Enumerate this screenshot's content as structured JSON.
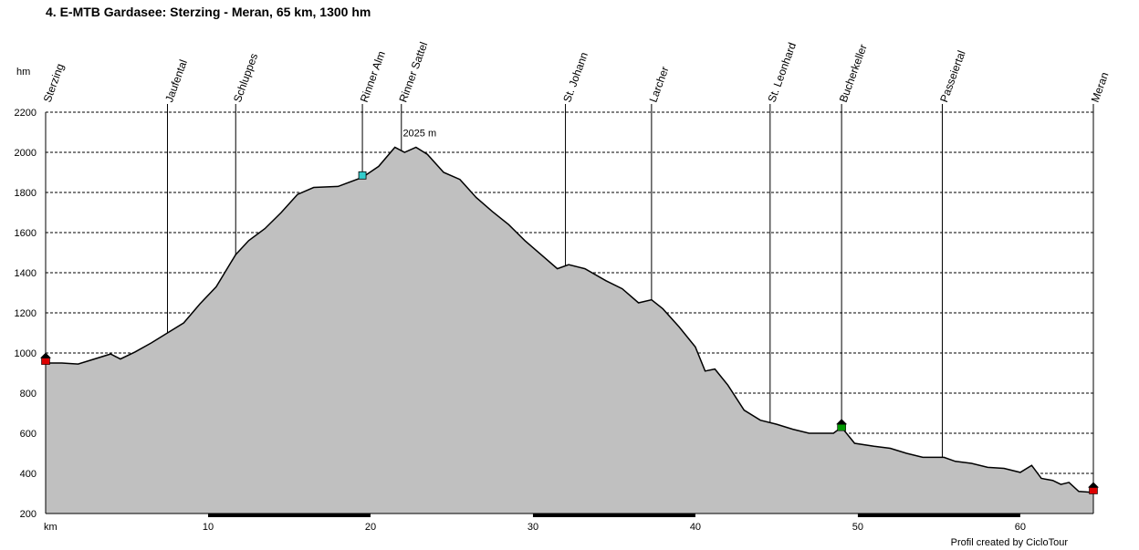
{
  "chart_data": {
    "type": "area",
    "title": "4. E-MTB Gardasee: Sterzing - Meran, 65 km, 1300 hm",
    "ylabel": "hm",
    "xlabel": "km",
    "ylim": [
      200,
      2200
    ],
    "xlim": [
      0,
      64.5
    ],
    "yticks": [
      200,
      400,
      600,
      800,
      1000,
      1200,
      1400,
      1600,
      1800,
      2000,
      2200
    ],
    "xticks": [
      10,
      20,
      30,
      40,
      50,
      60
    ],
    "grid": true,
    "fill_color": "#c0c0c0",
    "max_label": "2025 m",
    "max_point": {
      "x": 22.8,
      "y": 2025
    },
    "waypoints": [
      {
        "name": "Sterzing",
        "x": 0
      },
      {
        "name": "Jaufental",
        "x": 7.5
      },
      {
        "name": "Schluppes",
        "x": 11.7
      },
      {
        "name": "Rinner Alm",
        "x": 19.5
      },
      {
        "name": "Rinner Sattel",
        "x": 21.9
      },
      {
        "name": "St. Johann",
        "x": 32.0
      },
      {
        "name": "Larcher",
        "x": 37.3
      },
      {
        "name": "St. Leonhard",
        "x": 44.6
      },
      {
        "name": "Bucherkeller",
        "x": 49.0
      },
      {
        "name": "Passeiertal",
        "x": 55.2
      },
      {
        "name": "Meran",
        "x": 64.5
      }
    ],
    "markers": [
      {
        "type": "house-red",
        "x": 0,
        "y": 970,
        "color": "#dd0000"
      },
      {
        "type": "hut-cyan",
        "x": 19.5,
        "y": 1885,
        "color": "#33cccc"
      },
      {
        "type": "house-green",
        "x": 49.0,
        "y": 640,
        "color": "#009900"
      },
      {
        "type": "house-red",
        "x": 64.5,
        "y": 325,
        "color": "#dd0000"
      }
    ],
    "profile": [
      [
        0,
        950
      ],
      [
        1,
        950
      ],
      [
        2,
        945
      ],
      [
        3,
        970
      ],
      [
        4,
        995
      ],
      [
        4.6,
        970
      ],
      [
        5.5,
        1005
      ],
      [
        6.5,
        1050
      ],
      [
        7.5,
        1100
      ],
      [
        8.5,
        1150
      ],
      [
        9.5,
        1245
      ],
      [
        10.5,
        1330
      ],
      [
        11.7,
        1490
      ],
      [
        12.5,
        1560
      ],
      [
        13.5,
        1620
      ],
      [
        14.5,
        1700
      ],
      [
        15.5,
        1790
      ],
      [
        16.5,
        1825
      ],
      [
        18,
        1830
      ],
      [
        19.5,
        1875
      ],
      [
        20.5,
        1930
      ],
      [
        21.5,
        2025
      ],
      [
        22.1,
        2000
      ],
      [
        22.8,
        2025
      ],
      [
        23.5,
        1990
      ],
      [
        24.5,
        1900
      ],
      [
        25.5,
        1865
      ],
      [
        26.5,
        1775
      ],
      [
        27.5,
        1705
      ],
      [
        28.5,
        1640
      ],
      [
        29.5,
        1560
      ],
      [
        30.5,
        1490
      ],
      [
        31.5,
        1420
      ],
      [
        32.2,
        1440
      ],
      [
        33.2,
        1420
      ],
      [
        34.5,
        1360
      ],
      [
        35.5,
        1320
      ],
      [
        36.5,
        1250
      ],
      [
        37.3,
        1265
      ],
      [
        38,
        1220
      ],
      [
        39,
        1130
      ],
      [
        40,
        1030
      ],
      [
        40.6,
        910
      ],
      [
        41.2,
        920
      ],
      [
        42,
        840
      ],
      [
        43,
        715
      ],
      [
        44,
        665
      ],
      [
        45,
        645
      ],
      [
        46,
        620
      ],
      [
        47,
        600
      ],
      [
        48,
        600
      ],
      [
        48.5,
        600
      ],
      [
        49,
        630
      ],
      [
        49.8,
        550
      ],
      [
        51,
        535
      ],
      [
        52,
        525
      ],
      [
        53,
        500
      ],
      [
        54,
        480
      ],
      [
        55.3,
        480
      ],
      [
        56,
        460
      ],
      [
        57,
        450
      ],
      [
        58,
        430
      ],
      [
        59,
        425
      ],
      [
        60,
        405
      ],
      [
        60.7,
        440
      ],
      [
        61.3,
        375
      ],
      [
        62,
        365
      ],
      [
        62.5,
        345
      ],
      [
        63,
        355
      ],
      [
        63.6,
        310
      ],
      [
        64.5,
        305
      ]
    ]
  },
  "footer": {
    "credit": "Profil created by CicloTour"
  }
}
